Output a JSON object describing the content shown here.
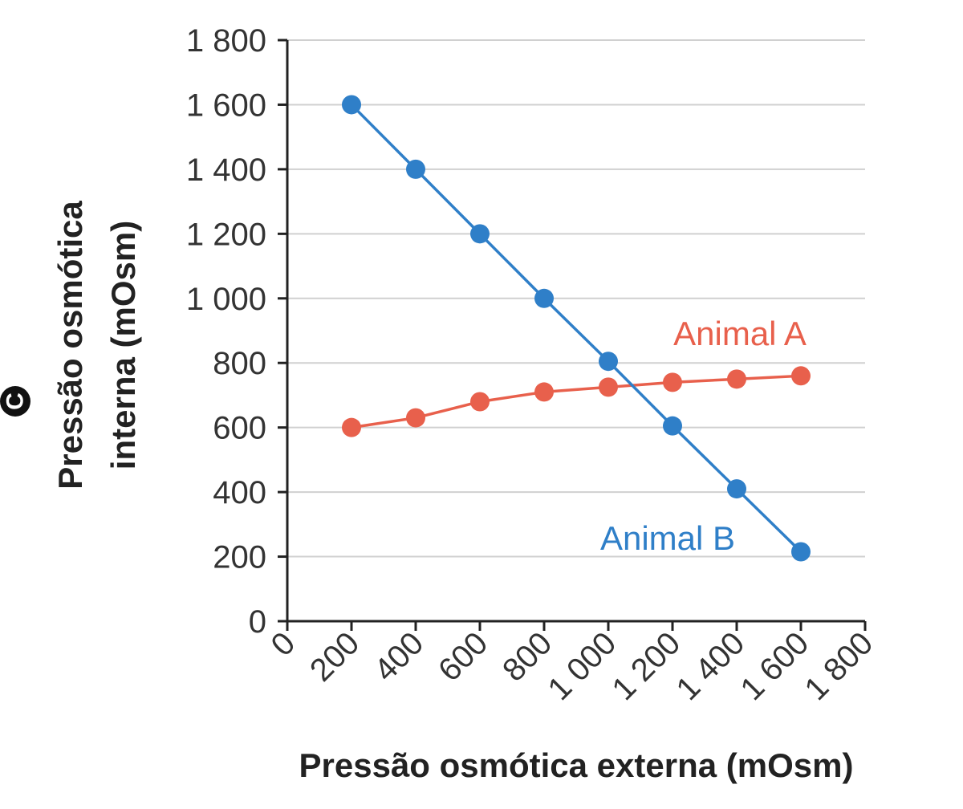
{
  "panel_label": "C",
  "chart_data": {
    "type": "line",
    "title": "",
    "xlabel": "Pressão osmótica externa (mOsm)",
    "ylabel_lines": [
      "Pressão osmótica",
      "interna (mOsm)"
    ],
    "xlim": [
      0,
      1800
    ],
    "ylim": [
      0,
      1800
    ],
    "x_ticks": [
      0,
      200,
      400,
      600,
      800,
      1000,
      1200,
      1400,
      1600,
      1800
    ],
    "x_tick_labels": [
      "0",
      "200",
      "400",
      "600",
      "800",
      "1 000",
      "1 200",
      "1 400",
      "1 600",
      "1 800"
    ],
    "y_ticks": [
      0,
      200,
      400,
      600,
      800,
      1000,
      1200,
      1400,
      1600,
      1800
    ],
    "y_tick_labels": [
      "0",
      "200",
      "400",
      "600",
      "800",
      "1 000",
      "1 200",
      "1 400",
      "1 600",
      "1 800"
    ],
    "grid": "horizontal",
    "series": [
      {
        "name": "Animal A",
        "color": "#e8604c",
        "x": [
          200,
          400,
          600,
          800,
          1000,
          1200,
          1400,
          1600
        ],
        "y": [
          600,
          630,
          680,
          710,
          725,
          740,
          750,
          760
        ]
      },
      {
        "name": "Animal B",
        "color": "#2f7fc8",
        "x": [
          200,
          400,
          600,
          800,
          1000,
          1200,
          1400,
          1600
        ],
        "y": [
          1600,
          1400,
          1200,
          1000,
          805,
          605,
          410,
          215
        ]
      }
    ]
  }
}
